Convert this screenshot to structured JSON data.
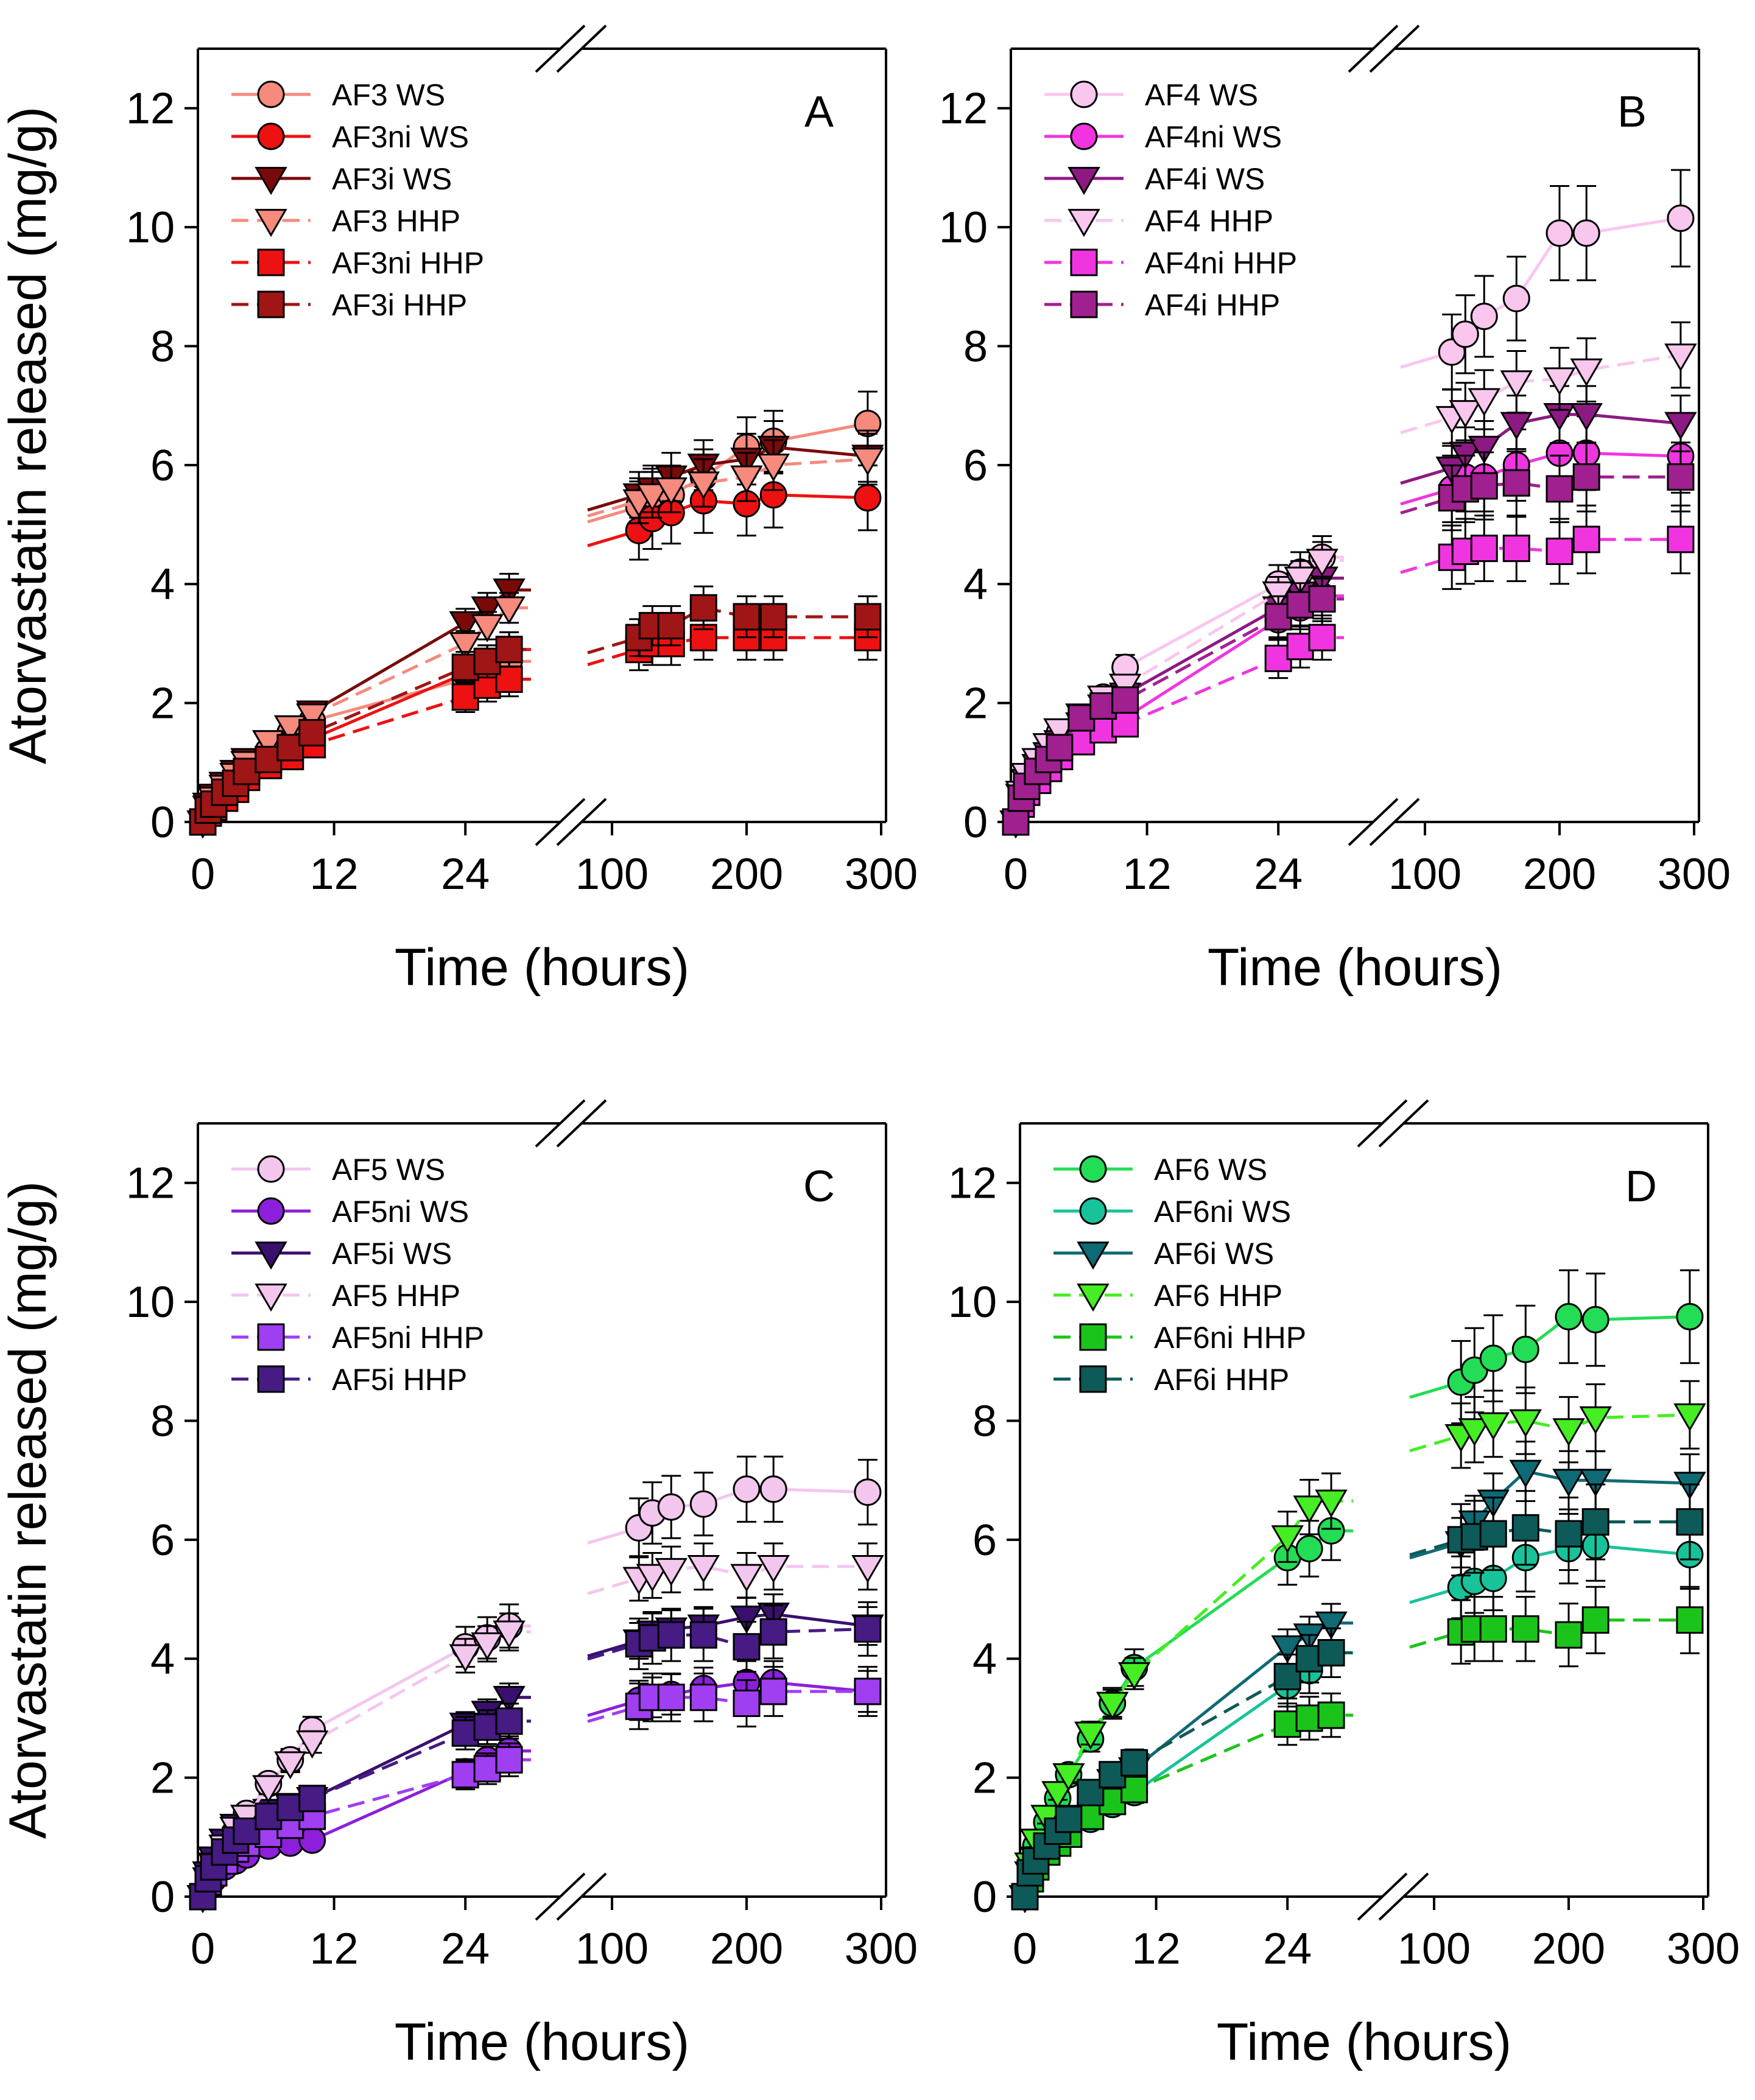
{
  "figure": {
    "y_axis_label": "Atorvastatin released (mg/g)",
    "x_axis_label": "Time (hours)"
  },
  "styles": {
    "A": {
      "WS": "#f58a7d",
      "niWS": "#ee1111",
      "iWS": "#7a0a0a",
      "HHP": "#f58a7d",
      "niHHP": "#ee1111",
      "iHHP": "#a01515"
    },
    "B": {
      "WS": "#f9c6ee",
      "niWS": "#f035e0",
      "iWS": "#8c1a82",
      "HHP": "#f9c6ee",
      "niHHP": "#f035e0",
      "iHHP": "#a0208f"
    },
    "C": {
      "WS": "#f3c6ee",
      "niWS": "#8d1fdc",
      "iWS": "#3a106e",
      "HHP": "#f3c6ee",
      "niHHP": "#a03ef2",
      "iHHP": "#461b84"
    },
    "D": {
      "WS": "#22dd55",
      "niWS": "#18c39a",
      "iWS": "#0e6a75",
      "HHP": "#44ee22",
      "niHHP": "#1bc41b",
      "iHHP": "#0e5a58"
    }
  },
  "chart_data": [
    {
      "type": "line",
      "panel": "A",
      "title": "A",
      "xlabel": "Time (hours)",
      "ylabel": "Atorvastatin released (mg/g)",
      "ylim": [
        0,
        13
      ],
      "yticks": [
        0,
        2,
        4,
        6,
        8,
        10,
        12
      ],
      "x_break": {
        "left_range": [
          0,
          30
        ],
        "right_range": [
          100,
          300
        ]
      },
      "xtick_labels": [
        "0",
        "12",
        "24",
        "100",
        "200",
        "300"
      ],
      "legend_position": "top-left",
      "grid": false,
      "x": [
        0,
        0.5,
        1,
        2,
        3,
        4,
        6,
        8,
        10,
        24,
        26,
        28,
        120,
        130,
        144,
        168,
        200,
        220,
        290
      ],
      "series": [
        {
          "name": "AF3 WS",
          "marker": "circle",
          "style": "WS",
          "values": [
            0,
            0.2,
            0.3,
            0.5,
            0.7,
            0.9,
            1.2,
            1.5,
            1.7,
            2.4,
            2.5,
            2.7,
            5.3,
            5.5,
            5.5,
            5.8,
            6.3,
            6.4,
            6.7
          ]
        },
        {
          "name": "AF3ni WS",
          "marker": "circle",
          "style": "niWS",
          "values": [
            0,
            0.2,
            0.3,
            0.4,
            0.6,
            0.8,
            1.0,
            1.2,
            1.4,
            2.5,
            2.7,
            2.9,
            4.9,
            5.1,
            5.2,
            5.4,
            5.35,
            5.5,
            5.45
          ]
        },
        {
          "name": "AF3i WS",
          "marker": "triangle",
          "style": "iWS",
          "values": [
            0,
            0.3,
            0.45,
            0.65,
            0.85,
            1.05,
            1.35,
            1.6,
            1.85,
            3.35,
            3.6,
            3.9,
            5.5,
            5.6,
            5.8,
            6.0,
            6.1,
            6.3,
            6.15
          ]
        },
        {
          "name": "AF3 HHP",
          "marker": "triangle",
          "style": "HHP",
          "values": [
            0,
            0.25,
            0.4,
            0.6,
            0.8,
            1.0,
            1.35,
            1.6,
            1.8,
            3.0,
            3.3,
            3.6,
            5.4,
            5.5,
            5.6,
            5.7,
            5.8,
            6.0,
            6.1
          ]
        },
        {
          "name": "AF3ni HHP",
          "marker": "square",
          "style": "niHHP",
          "values": [
            0,
            0.15,
            0.25,
            0.4,
            0.55,
            0.75,
            0.95,
            1.1,
            1.3,
            2.1,
            2.3,
            2.4,
            2.9,
            3.0,
            3.0,
            3.1,
            3.1,
            3.1,
            3.1
          ]
        },
        {
          "name": "AF3i HHP",
          "marker": "square",
          "style": "iHHP",
          "values": [
            0,
            0.2,
            0.3,
            0.5,
            0.65,
            0.85,
            1.05,
            1.25,
            1.5,
            2.6,
            2.7,
            2.9,
            3.1,
            3.3,
            3.3,
            3.6,
            3.45,
            3.45,
            3.45
          ]
        }
      ]
    },
    {
      "type": "line",
      "panel": "B",
      "title": "B",
      "xlabel": "Time (hours)",
      "ylabel": "Atorvastatin released (mg/g)",
      "ylim": [
        0,
        13
      ],
      "yticks": [
        0,
        2,
        4,
        6,
        8,
        10,
        12
      ],
      "x_break": {
        "left_range": [
          0,
          30
        ],
        "right_range": [
          100,
          300
        ]
      },
      "xtick_labels": [
        "0",
        "12",
        "24",
        "100",
        "200",
        "300"
      ],
      "legend_position": "top-left",
      "grid": false,
      "x": [
        0,
        0.5,
        1,
        2,
        3,
        4,
        6,
        8,
        10,
        24,
        26,
        28,
        120,
        130,
        144,
        168,
        200,
        220,
        290
      ],
      "series": [
        {
          "name": "AF4 WS",
          "marker": "circle",
          "style": "WS",
          "values": [
            0,
            0.5,
            0.75,
            1.0,
            1.2,
            1.5,
            1.75,
            2.1,
            2.6,
            4.0,
            4.2,
            4.45,
            7.9,
            8.2,
            8.5,
            8.8,
            9.9,
            9.9,
            10.15
          ]
        },
        {
          "name": "AF4ni WS",
          "marker": "circle",
          "style": "niWS",
          "values": [
            0,
            0.35,
            0.55,
            0.75,
            0.95,
            1.15,
            1.4,
            1.6,
            1.75,
            3.4,
            3.6,
            3.8,
            5.6,
            5.8,
            5.8,
            6.0,
            6.2,
            6.2,
            6.15
          ]
        },
        {
          "name": "AF4i WS",
          "marker": "triangle",
          "style": "iWS",
          "values": [
            0,
            0.45,
            0.7,
            0.95,
            1.15,
            1.35,
            1.65,
            1.95,
            2.15,
            3.6,
            3.85,
            4.1,
            5.95,
            6.2,
            6.3,
            6.7,
            6.85,
            6.85,
            6.7
          ]
        },
        {
          "name": "AF4 HHP",
          "marker": "triangle",
          "style": "HHP",
          "values": [
            0,
            0.5,
            0.8,
            1.05,
            1.3,
            1.55,
            1.8,
            2.1,
            2.3,
            3.85,
            4.1,
            4.4,
            6.8,
            6.9,
            7.1,
            7.4,
            7.45,
            7.6,
            7.85
          ]
        },
        {
          "name": "AF4ni HHP",
          "marker": "square",
          "style": "niHHP",
          "values": [
            0,
            0.3,
            0.5,
            0.7,
            0.9,
            1.1,
            1.35,
            1.55,
            1.65,
            2.75,
            2.95,
            3.1,
            4.45,
            4.55,
            4.6,
            4.6,
            4.55,
            4.75,
            4.75
          ]
        },
        {
          "name": "AF4i HHP",
          "marker": "square",
          "style": "iHHP",
          "values": [
            0,
            0.4,
            0.6,
            0.85,
            1.05,
            1.25,
            1.75,
            1.95,
            2.05,
            3.45,
            3.65,
            3.75,
            5.45,
            5.6,
            5.65,
            5.7,
            5.6,
            5.8,
            5.8
          ]
        }
      ]
    },
    {
      "type": "line",
      "panel": "C",
      "title": "C",
      "xlabel": "Time (hours)",
      "ylabel": "Atorvastatin released (mg/g)",
      "ylim": [
        0,
        13
      ],
      "yticks": [
        0,
        2,
        4,
        6,
        8,
        10,
        12
      ],
      "x_break": {
        "left_range": [
          0,
          30
        ],
        "right_range": [
          100,
          300
        ]
      },
      "xtick_labels": [
        "0",
        "12",
        "24",
        "100",
        "200",
        "300"
      ],
      "legend_position": "top-left",
      "grid": false,
      "x": [
        0,
        0.5,
        1,
        2,
        3,
        4,
        6,
        8,
        10,
        24,
        26,
        28,
        120,
        130,
        144,
        168,
        200,
        220,
        290
      ],
      "series": [
        {
          "name": "AF5 WS",
          "marker": "circle",
          "style": "WS",
          "values": [
            0,
            0.3,
            0.5,
            0.8,
            1.1,
            1.4,
            1.9,
            2.3,
            2.8,
            4.2,
            4.35,
            4.55,
            6.2,
            6.45,
            6.55,
            6.6,
            6.85,
            6.85,
            6.8
          ]
        },
        {
          "name": "AF5ni WS",
          "marker": "circle",
          "style": "niWS",
          "values": [
            0,
            0.2,
            0.3,
            0.5,
            0.6,
            0.7,
            0.85,
            0.9,
            0.95,
            2.1,
            2.3,
            2.45,
            3.3,
            3.35,
            3.4,
            3.5,
            3.6,
            3.6,
            3.45
          ]
        },
        {
          "name": "AF5i WS",
          "marker": "triangle",
          "style": "iWS",
          "values": [
            0,
            0.4,
            0.65,
            0.95,
            1.2,
            1.35,
            1.45,
            1.55,
            1.65,
            2.9,
            3.1,
            3.35,
            4.3,
            4.45,
            4.5,
            4.55,
            4.7,
            4.75,
            4.55
          ]
        },
        {
          "name": "AF5 HHP",
          "marker": "triangle",
          "style": "HHP",
          "values": [
            0,
            0.3,
            0.55,
            0.85,
            1.15,
            1.35,
            1.85,
            2.25,
            2.6,
            4.05,
            4.25,
            4.45,
            5.35,
            5.4,
            5.5,
            5.55,
            5.4,
            5.55,
            5.55
          ]
        },
        {
          "name": "AF5ni HHP",
          "marker": "square",
          "style": "niHHP",
          "values": [
            0,
            0.25,
            0.4,
            0.6,
            0.8,
            0.9,
            1.05,
            1.2,
            1.35,
            2.05,
            2.15,
            2.3,
            3.2,
            3.35,
            3.35,
            3.35,
            3.25,
            3.45,
            3.45
          ]
        },
        {
          "name": "AF5i HHP",
          "marker": "square",
          "style": "iHHP",
          "values": [
            0,
            0.3,
            0.5,
            0.75,
            0.95,
            1.1,
            1.35,
            1.5,
            1.65,
            2.75,
            2.85,
            2.95,
            4.25,
            4.35,
            4.4,
            4.4,
            4.2,
            4.45,
            4.5
          ]
        }
      ]
    },
    {
      "type": "line",
      "panel": "D",
      "title": "D",
      "xlabel": "Time (hours)",
      "ylabel": "Atorvastatin released (mg/g)",
      "ylim": [
        0,
        13
      ],
      "yticks": [
        0,
        2,
        4,
        6,
        8,
        10,
        12
      ],
      "x_break": {
        "left_range": [
          0,
          30
        ],
        "right_range": [
          100,
          300
        ]
      },
      "xtick_labels": [
        "0",
        "12",
        "24",
        "100",
        "200",
        "300"
      ],
      "legend_position": "top-left",
      "grid": false,
      "x": [
        0,
        0.5,
        1,
        2,
        3,
        4,
        6,
        8,
        10,
        24,
        26,
        28,
        120,
        130,
        144,
        168,
        200,
        220,
        290
      ],
      "series": [
        {
          "name": "AF6 WS",
          "marker": "circle",
          "style": "WS",
          "values": [
            0,
            0.5,
            0.85,
            1.25,
            1.65,
            2.05,
            2.65,
            3.25,
            3.85,
            5.7,
            5.85,
            6.15,
            8.65,
            8.85,
            9.05,
            9.2,
            9.75,
            9.7,
            9.75
          ]
        },
        {
          "name": "AF6ni WS",
          "marker": "circle",
          "style": "niWS",
          "values": [
            0,
            0.3,
            0.5,
            0.75,
            0.9,
            1.05,
            1.3,
            1.55,
            1.75,
            3.55,
            3.8,
            4.1,
            5.2,
            5.3,
            5.35,
            5.7,
            5.85,
            5.9,
            5.75
          ]
        },
        {
          "name": "AF6i WS",
          "marker": "triangle",
          "style": "iWS",
          "values": [
            0,
            0.4,
            0.65,
            0.95,
            1.15,
            1.35,
            1.75,
            1.95,
            2.15,
            4.2,
            4.4,
            4.6,
            5.95,
            6.3,
            6.65,
            7.15,
            7.0,
            7.0,
            6.95
          ]
        },
        {
          "name": "AF6 HHP",
          "marker": "triangle",
          "style": "HHP",
          "values": [
            0,
            0.55,
            0.95,
            1.35,
            1.75,
            2.05,
            2.75,
            3.25,
            3.75,
            6.05,
            6.55,
            6.65,
            7.75,
            7.85,
            7.95,
            8.0,
            7.85,
            8.05,
            8.1
          ]
        },
        {
          "name": "AF6ni HHP",
          "marker": "square",
          "style": "niHHP",
          "values": [
            0,
            0.3,
            0.5,
            0.75,
            0.9,
            1.05,
            1.35,
            1.6,
            1.8,
            2.9,
            3.0,
            3.05,
            4.45,
            4.5,
            4.5,
            4.5,
            4.4,
            4.65,
            4.65
          ]
        },
        {
          "name": "AF6i HHP",
          "marker": "square",
          "style": "iHHP",
          "values": [
            0,
            0.4,
            0.6,
            0.85,
            1.1,
            1.3,
            1.75,
            2.05,
            2.25,
            3.7,
            4.0,
            4.1,
            6.0,
            6.05,
            6.1,
            6.2,
            6.1,
            6.3,
            6.3
          ]
        }
      ]
    }
  ]
}
